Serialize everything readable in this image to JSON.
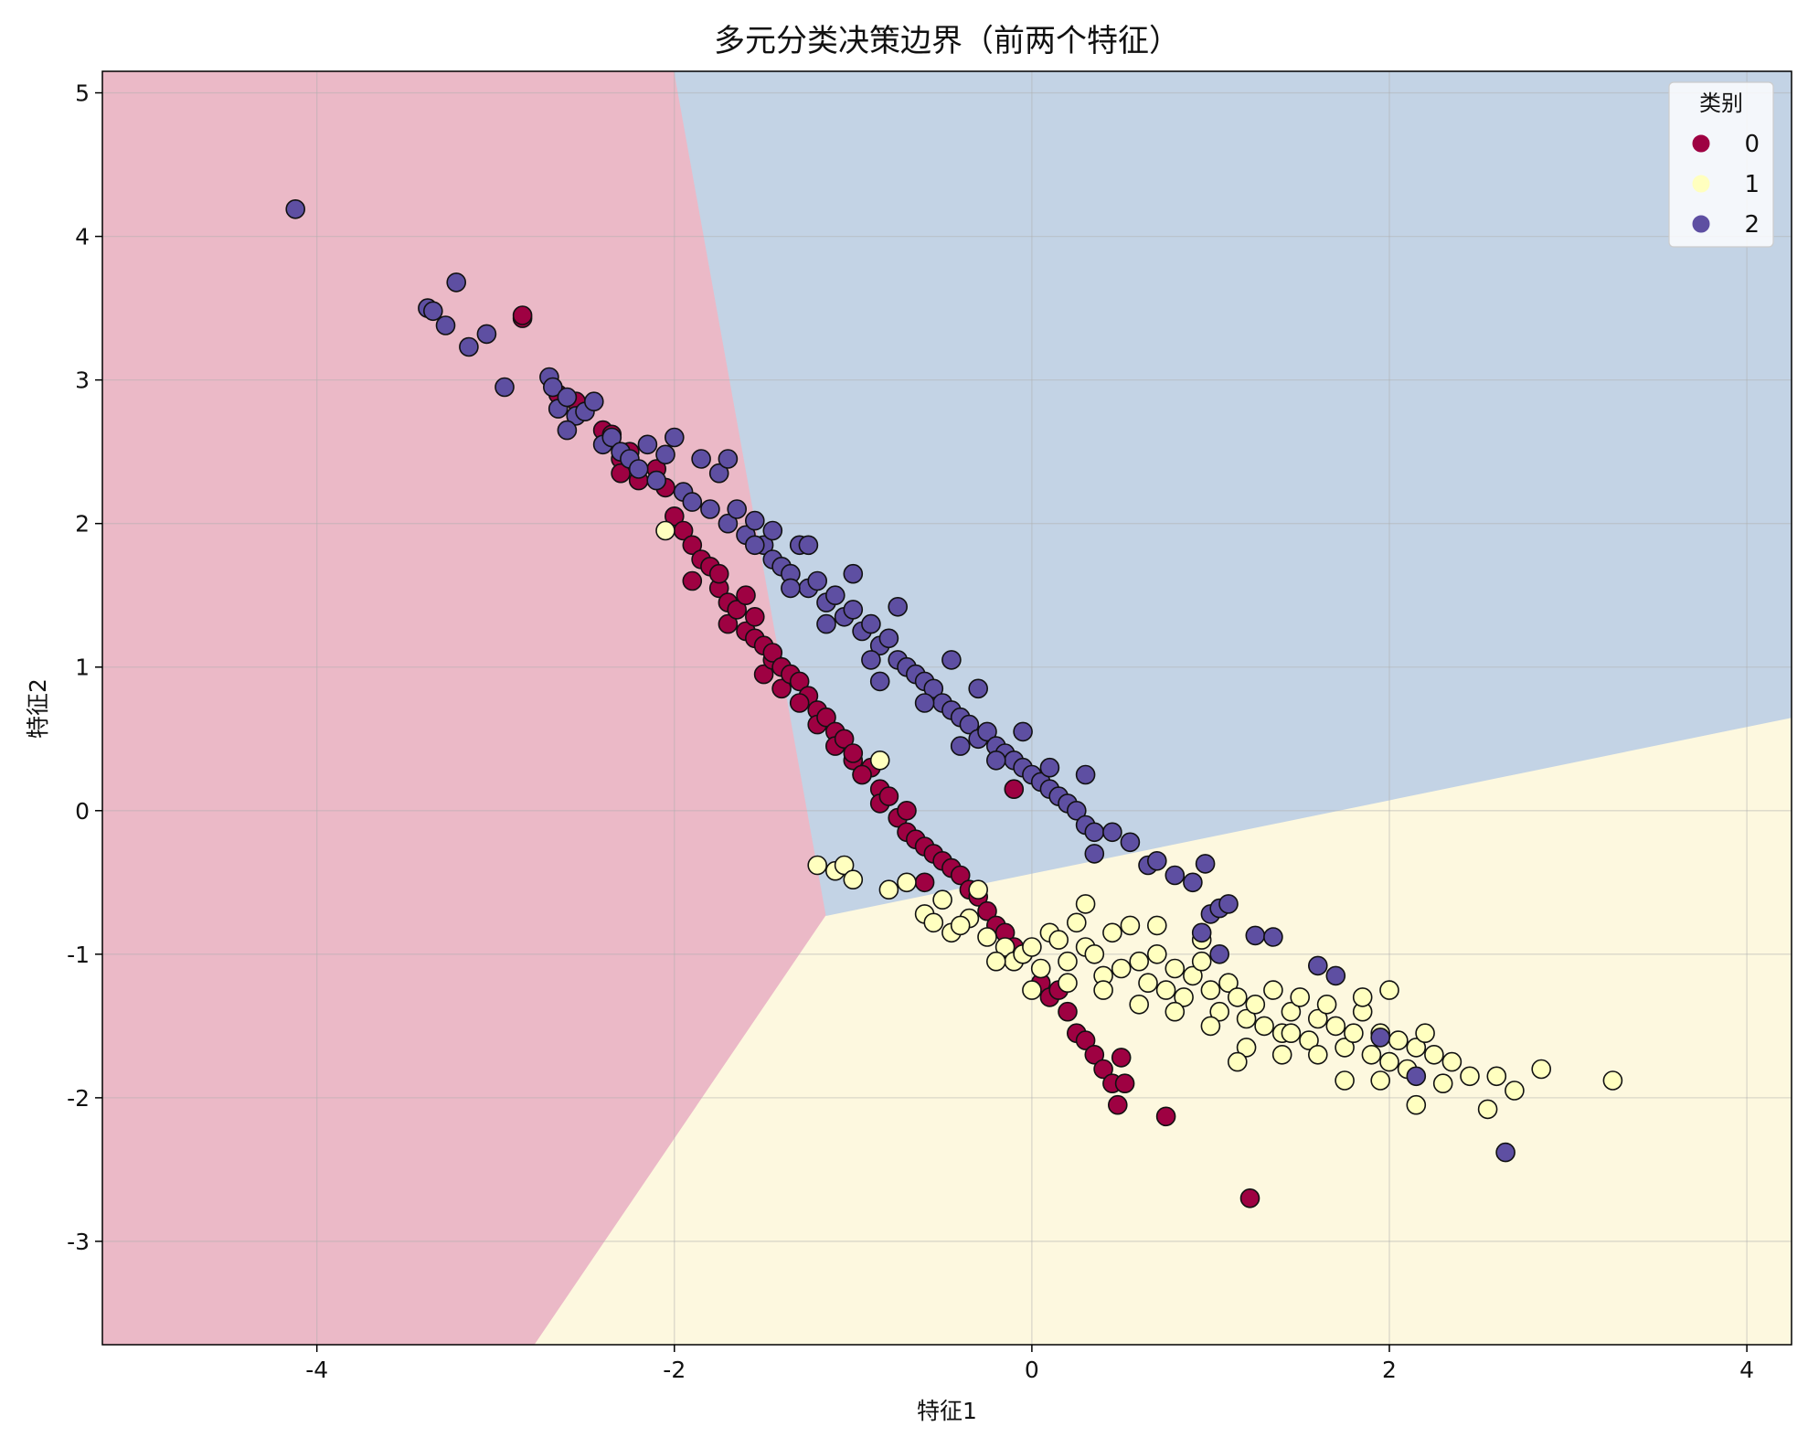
{
  "chart_data": {
    "type": "scatter",
    "title": "多元分类决策边界（前两个特征）",
    "xlabel": "特征1",
    "ylabel": "特征2",
    "xlim": [
      -5.2,
      4.25
    ],
    "ylim": [
      -3.72,
      5.15
    ],
    "x_ticks": [
      -4,
      -2,
      0,
      2,
      4
    ],
    "y_ticks": [
      -3,
      -2,
      -1,
      0,
      1,
      2,
      3,
      4,
      5
    ],
    "x_tick_labels": [
      "-4",
      "-2",
      "0",
      "2",
      "4"
    ],
    "y_tick_labels": [
      "-3",
      "-2",
      "-1",
      "0",
      "1",
      "2",
      "3",
      "4",
      "5"
    ],
    "grid": true,
    "legend": {
      "title": "类别",
      "placement": "top-right",
      "entries": [
        "0",
        "1",
        "2"
      ]
    },
    "colors": {
      "0": "#9e0142",
      "1": "#ffffbf",
      "2": "#5e4fa2"
    },
    "region_colors": {
      "0": "#ebb9c7",
      "1": "#fdf8df",
      "2": "#c3d3e5"
    },
    "decision_regions": {
      "0": [
        [
          -5.2,
          5.15
        ],
        [
          -2.0,
          5.15
        ],
        [
          -1.15,
          -0.73
        ],
        [
          -2.78,
          -3.72
        ],
        [
          -5.2,
          -3.72
        ]
      ],
      "1": [
        [
          -1.15,
          -0.73
        ],
        [
          4.25,
          0.65
        ],
        [
          4.25,
          -3.72
        ],
        [
          -2.78,
          -3.72
        ]
      ],
      "2": [
        [
          -2.0,
          5.15
        ],
        [
          4.25,
          5.15
        ],
        [
          4.25,
          0.65
        ],
        [
          -1.15,
          -0.73
        ]
      ]
    },
    "series": [
      {
        "name": "0",
        "points": [
          [
            -2.85,
            3.43
          ],
          [
            -2.85,
            3.45
          ],
          [
            -2.65,
            2.9
          ],
          [
            -2.55,
            2.85
          ],
          [
            -2.4,
            2.65
          ],
          [
            -2.35,
            2.62
          ],
          [
            -2.3,
            2.45
          ],
          [
            -2.3,
            2.35
          ],
          [
            -2.25,
            2.5
          ],
          [
            -2.2,
            2.3
          ],
          [
            -2.1,
            2.38
          ],
          [
            -2.05,
            2.25
          ],
          [
            -2.0,
            2.05
          ],
          [
            -1.95,
            1.95
          ],
          [
            -1.9,
            1.85
          ],
          [
            -1.9,
            1.6
          ],
          [
            -1.85,
            1.75
          ],
          [
            -1.8,
            1.7
          ],
          [
            -1.75,
            1.55
          ],
          [
            -1.7,
            1.45
          ],
          [
            -1.7,
            1.3
          ],
          [
            -1.65,
            1.4
          ],
          [
            -1.6,
            1.5
          ],
          [
            -1.6,
            1.25
          ],
          [
            -1.55,
            1.2
          ],
          [
            -1.55,
            1.35
          ],
          [
            -1.5,
            1.15
          ],
          [
            -1.5,
            0.95
          ],
          [
            -1.45,
            1.05
          ],
          [
            -1.45,
            1.1
          ],
          [
            -1.4,
            1.0
          ],
          [
            -1.4,
            0.85
          ],
          [
            -1.35,
            0.95
          ],
          [
            -1.3,
            0.9
          ],
          [
            -1.25,
            0.8
          ],
          [
            -1.2,
            0.7
          ],
          [
            -1.2,
            0.6
          ],
          [
            -1.15,
            0.65
          ],
          [
            -1.1,
            0.55
          ],
          [
            -1.1,
            0.45
          ],
          [
            -1.05,
            0.5
          ],
          [
            -1.0,
            0.35
          ],
          [
            -1.0,
            0.4
          ],
          [
            -0.95,
            0.25
          ],
          [
            -0.9,
            0.3
          ],
          [
            -0.85,
            0.15
          ],
          [
            -0.85,
            0.05
          ],
          [
            -0.8,
            0.1
          ],
          [
            -0.75,
            -0.05
          ],
          [
            -0.7,
            0.0
          ],
          [
            -0.7,
            -0.15
          ],
          [
            -0.65,
            -0.2
          ],
          [
            -0.6,
            -0.25
          ],
          [
            -0.55,
            -0.3
          ],
          [
            -0.5,
            -0.35
          ],
          [
            -0.45,
            -0.4
          ],
          [
            -0.4,
            -0.45
          ],
          [
            -0.35,
            -0.55
          ],
          [
            -0.3,
            -0.6
          ],
          [
            -0.25,
            -0.7
          ],
          [
            -0.2,
            -0.8
          ],
          [
            -0.15,
            -0.85
          ],
          [
            -0.1,
            -0.95
          ],
          [
            -0.05,
            -1.0
          ],
          [
            0.05,
            -1.2
          ],
          [
            0.1,
            -1.3
          ],
          [
            0.2,
            -1.4
          ],
          [
            0.25,
            -1.55
          ],
          [
            0.3,
            -1.6
          ],
          [
            0.35,
            -1.7
          ],
          [
            0.4,
            -1.8
          ],
          [
            0.45,
            -1.9
          ],
          [
            0.5,
            -1.72
          ],
          [
            0.52,
            -1.9
          ],
          [
            0.48,
            -2.05
          ],
          [
            0.75,
            -2.13
          ],
          [
            0.15,
            -1.25
          ],
          [
            -0.1,
            0.15
          ],
          [
            -0.6,
            -0.5
          ],
          [
            -1.3,
            0.75
          ],
          [
            -1.75,
            1.65
          ],
          [
            -0.95,
            0.25
          ],
          [
            1.22,
            -2.7
          ]
        ]
      },
      {
        "name": "1",
        "points": [
          [
            -1.2,
            -0.38
          ],
          [
            -1.1,
            -0.42
          ],
          [
            -1.05,
            -0.38
          ],
          [
            -1.0,
            -0.48
          ],
          [
            -0.8,
            -0.55
          ],
          [
            -0.6,
            -0.72
          ],
          [
            -0.5,
            -0.62
          ],
          [
            -0.45,
            -0.85
          ],
          [
            -0.35,
            -0.75
          ],
          [
            -0.3,
            -0.55
          ],
          [
            -0.25,
            -0.88
          ],
          [
            -0.15,
            -0.95
          ],
          [
            -0.1,
            -1.05
          ],
          [
            -0.05,
            -1.0
          ],
          [
            0.0,
            -0.95
          ],
          [
            0.05,
            -1.1
          ],
          [
            0.1,
            -0.85
          ],
          [
            0.15,
            -0.9
          ],
          [
            0.2,
            -1.05
          ],
          [
            0.25,
            -0.78
          ],
          [
            0.3,
            -0.95
          ],
          [
            0.35,
            -1.0
          ],
          [
            0.4,
            -1.15
          ],
          [
            0.45,
            -0.85
          ],
          [
            0.5,
            -1.1
          ],
          [
            0.55,
            -0.8
          ],
          [
            0.6,
            -1.05
          ],
          [
            0.65,
            -1.2
          ],
          [
            0.7,
            -1.0
          ],
          [
            0.75,
            -1.25
          ],
          [
            0.8,
            -1.1
          ],
          [
            0.85,
            -1.3
          ],
          [
            0.9,
            -1.15
          ],
          [
            0.95,
            -1.05
          ],
          [
            1.0,
            -1.25
          ],
          [
            1.05,
            -1.4
          ],
          [
            1.1,
            -1.2
          ],
          [
            1.15,
            -1.3
          ],
          [
            1.2,
            -1.45
          ],
          [
            1.25,
            -1.35
          ],
          [
            1.3,
            -1.5
          ],
          [
            1.35,
            -1.25
          ],
          [
            1.4,
            -1.55
          ],
          [
            1.45,
            -1.4
          ],
          [
            1.5,
            -1.3
          ],
          [
            1.55,
            -1.6
          ],
          [
            1.6,
            -1.45
          ],
          [
            1.65,
            -1.35
          ],
          [
            1.7,
            -1.5
          ],
          [
            1.75,
            -1.65
          ],
          [
            1.8,
            -1.55
          ],
          [
            1.85,
            -1.4
          ],
          [
            1.9,
            -1.7
          ],
          [
            1.95,
            -1.55
          ],
          [
            2.0,
            -1.75
          ],
          [
            2.05,
            -1.6
          ],
          [
            2.1,
            -1.8
          ],
          [
            2.15,
            -1.65
          ],
          [
            2.2,
            -1.55
          ],
          [
            2.25,
            -1.7
          ],
          [
            2.3,
            -1.9
          ],
          [
            2.35,
            -1.75
          ],
          [
            2.45,
            -1.85
          ],
          [
            2.55,
            -2.08
          ],
          [
            2.6,
            -1.85
          ],
          [
            2.7,
            -1.95
          ],
          [
            2.85,
            -1.8
          ],
          [
            3.25,
            -1.88
          ],
          [
            2.15,
            -2.05
          ],
          [
            1.95,
            -1.88
          ],
          [
            1.75,
            -1.88
          ],
          [
            1.6,
            -1.7
          ],
          [
            1.45,
            -1.55
          ],
          [
            1.2,
            -1.65
          ],
          [
            1.0,
            -1.5
          ],
          [
            0.8,
            -1.4
          ],
          [
            0.6,
            -1.35
          ],
          [
            0.4,
            -1.25
          ],
          [
            0.2,
            -1.2
          ],
          [
            0.0,
            -1.25
          ],
          [
            -0.2,
            -1.05
          ],
          [
            -0.4,
            -0.8
          ],
          [
            -0.55,
            -0.78
          ],
          [
            1.15,
            -1.75
          ],
          [
            1.4,
            -1.7
          ],
          [
            0.3,
            -0.65
          ],
          [
            0.7,
            -0.8
          ],
          [
            0.95,
            -0.9
          ],
          [
            1.85,
            -1.3
          ],
          [
            2.0,
            -1.25
          ],
          [
            -2.05,
            1.95
          ],
          [
            -0.85,
            0.35
          ],
          [
            -0.7,
            -0.5
          ]
        ]
      },
      {
        "name": "2",
        "points": [
          [
            -4.12,
            4.19
          ],
          [
            -3.38,
            3.5
          ],
          [
            -3.35,
            3.48
          ],
          [
            -3.28,
            3.38
          ],
          [
            -3.22,
            3.68
          ],
          [
            -3.15,
            3.23
          ],
          [
            -3.05,
            3.32
          ],
          [
            -2.95,
            2.95
          ],
          [
            -2.7,
            3.02
          ],
          [
            -2.68,
            2.95
          ],
          [
            -2.65,
            2.8
          ],
          [
            -2.6,
            2.88
          ],
          [
            -2.55,
            2.75
          ],
          [
            -2.6,
            2.65
          ],
          [
            -2.5,
            2.78
          ],
          [
            -2.45,
            2.85
          ],
          [
            -2.4,
            2.55
          ],
          [
            -2.35,
            2.6
          ],
          [
            -2.3,
            2.5
          ],
          [
            -2.25,
            2.45
          ],
          [
            -2.2,
            2.38
          ],
          [
            -2.15,
            2.55
          ],
          [
            -2.1,
            2.3
          ],
          [
            -2.05,
            2.48
          ],
          [
            -2.0,
            2.6
          ],
          [
            -1.95,
            2.22
          ],
          [
            -1.9,
            2.15
          ],
          [
            -1.85,
            2.45
          ],
          [
            -1.8,
            2.1
          ],
          [
            -1.75,
            2.35
          ],
          [
            -1.7,
            2.0
          ],
          [
            -1.65,
            2.1
          ],
          [
            -1.6,
            1.92
          ],
          [
            -1.55,
            2.02
          ],
          [
            -1.5,
            1.85
          ],
          [
            -1.45,
            1.75
          ],
          [
            -1.4,
            1.7
          ],
          [
            -1.35,
            1.65
          ],
          [
            -1.3,
            1.85
          ],
          [
            -1.25,
            1.55
          ],
          [
            -1.2,
            1.6
          ],
          [
            -1.15,
            1.45
          ],
          [
            -1.1,
            1.5
          ],
          [
            -1.05,
            1.35
          ],
          [
            -1.0,
            1.4
          ],
          [
            -0.95,
            1.25
          ],
          [
            -0.9,
            1.3
          ],
          [
            -0.85,
            1.15
          ],
          [
            -0.8,
            1.2
          ],
          [
            -0.75,
            1.05
          ],
          [
            -0.7,
            1.0
          ],
          [
            -0.65,
            0.95
          ],
          [
            -0.6,
            0.9
          ],
          [
            -0.55,
            0.85
          ],
          [
            -0.5,
            0.75
          ],
          [
            -0.45,
            0.7
          ],
          [
            -0.4,
            0.65
          ],
          [
            -0.35,
            0.6
          ],
          [
            -0.3,
            0.5
          ],
          [
            -0.25,
            0.55
          ],
          [
            -0.2,
            0.45
          ],
          [
            -0.15,
            0.4
          ],
          [
            -0.1,
            0.35
          ],
          [
            -0.05,
            0.3
          ],
          [
            0.0,
            0.25
          ],
          [
            0.05,
            0.2
          ],
          [
            0.1,
            0.15
          ],
          [
            0.15,
            0.1
          ],
          [
            0.2,
            0.05
          ],
          [
            0.25,
            0.0
          ],
          [
            0.3,
            -0.1
          ],
          [
            0.35,
            -0.15
          ],
          [
            0.45,
            -0.15
          ],
          [
            0.55,
            -0.22
          ],
          [
            0.65,
            -0.38
          ],
          [
            0.7,
            -0.35
          ],
          [
            0.8,
            -0.45
          ],
          [
            0.9,
            -0.5
          ],
          [
            0.97,
            -0.37
          ],
          [
            1.0,
            -0.72
          ],
          [
            1.05,
            -0.68
          ],
          [
            1.1,
            -0.65
          ],
          [
            0.95,
            -0.85
          ],
          [
            1.25,
            -0.87
          ],
          [
            1.35,
            -0.88
          ],
          [
            1.6,
            -1.08
          ],
          [
            1.7,
            -1.15
          ],
          [
            1.95,
            -1.58
          ],
          [
            2.15,
            -1.85
          ],
          [
            2.65,
            -2.38
          ],
          [
            -1.45,
            1.95
          ],
          [
            -1.25,
            1.85
          ],
          [
            -1.0,
            1.65
          ],
          [
            -0.75,
            1.42
          ],
          [
            -0.45,
            1.05
          ],
          [
            -0.3,
            0.85
          ],
          [
            -0.05,
            0.55
          ],
          [
            0.3,
            0.25
          ],
          [
            -1.7,
            2.45
          ],
          [
            -1.55,
            1.85
          ],
          [
            -1.35,
            1.55
          ],
          [
            -1.15,
            1.3
          ],
          [
            -0.9,
            1.05
          ],
          [
            -0.85,
            0.9
          ],
          [
            -0.6,
            0.75
          ],
          [
            -0.2,
            0.35
          ],
          [
            0.1,
            0.3
          ],
          [
            -0.4,
            0.45
          ],
          [
            0.35,
            -0.3
          ],
          [
            1.05,
            -1.0
          ]
        ]
      }
    ]
  }
}
